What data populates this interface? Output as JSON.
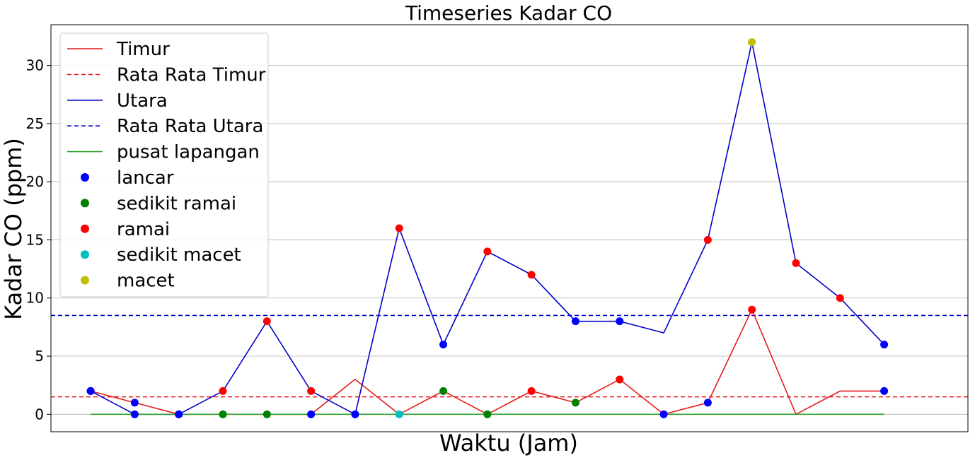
{
  "chart_data": {
    "type": "line",
    "title": "Timeseries Kadar CO",
    "xlabel": "Waktu (Jam)",
    "ylabel": "Kadar CO (ppm)",
    "ylim": [
      -1.5,
      33.5
    ],
    "xlim": [
      -0.9,
      19.9
    ],
    "yticks": [
      0,
      5,
      10,
      15,
      20,
      25,
      30
    ],
    "grid": "y",
    "legend_position": "top-left",
    "x": [
      0,
      1,
      2,
      3,
      4,
      5,
      6,
      7,
      8,
      9,
      10,
      11,
      12,
      13,
      14,
      15,
      16,
      17,
      18
    ],
    "series": [
      {
        "name": "Timur",
        "color": "#e41a1c",
        "style": "solid",
        "values": [
          2,
          1,
          0,
          0,
          0,
          0,
          3,
          0,
          2,
          0,
          2,
          1,
          3,
          0,
          1,
          9,
          0,
          2,
          2
        ],
        "markers": [
          "lancar",
          "lancar",
          "lancar",
          "sedikit ramai",
          "sedikit ramai",
          "lancar",
          null,
          "sedikit macet",
          "sedikit ramai",
          "sedikit ramai",
          "ramai",
          "sedikit ramai",
          "ramai",
          "lancar",
          "lancar",
          "ramai",
          null,
          null,
          "lancar"
        ]
      },
      {
        "name": "Rata Rata Timur",
        "color": "#e41a1c",
        "style": "dashed",
        "constant": 1.5
      },
      {
        "name": "Utara",
        "color": "#0000cc",
        "style": "solid",
        "values": [
          2,
          0,
          0,
          2,
          8,
          2,
          0,
          16,
          6,
          14,
          12,
          8,
          8,
          7,
          15,
          32,
          13,
          10,
          6
        ],
        "markers": [
          "lancar",
          "lancar",
          "lancar",
          "ramai",
          "ramai",
          "ramai",
          "lancar",
          "ramai",
          "lancar",
          "ramai",
          "ramai",
          "lancar",
          "lancar",
          null,
          "ramai",
          "macet",
          "ramai",
          "ramai",
          "lancar"
        ]
      },
      {
        "name": "Rata Rata Utara",
        "color": "#0000cc",
        "style": "dashed",
        "constant": 8.5
      },
      {
        "name": "pusat lapangan",
        "color": "#2ca02c",
        "style": "solid",
        "values": [
          0,
          0,
          0,
          0,
          0,
          0,
          0,
          0,
          0,
          0,
          0,
          0,
          0,
          0,
          0,
          0,
          0,
          0,
          0
        ],
        "markers": []
      }
    ],
    "marker_categories": [
      {
        "name": "lancar",
        "color": "#0000ff"
      },
      {
        "name": "sedikit ramai",
        "color": "#008000"
      },
      {
        "name": "ramai",
        "color": "#ff0000"
      },
      {
        "name": "sedikit macet",
        "color": "#00bfbf"
      },
      {
        "name": "macet",
        "color": "#bfbf00"
      }
    ]
  }
}
